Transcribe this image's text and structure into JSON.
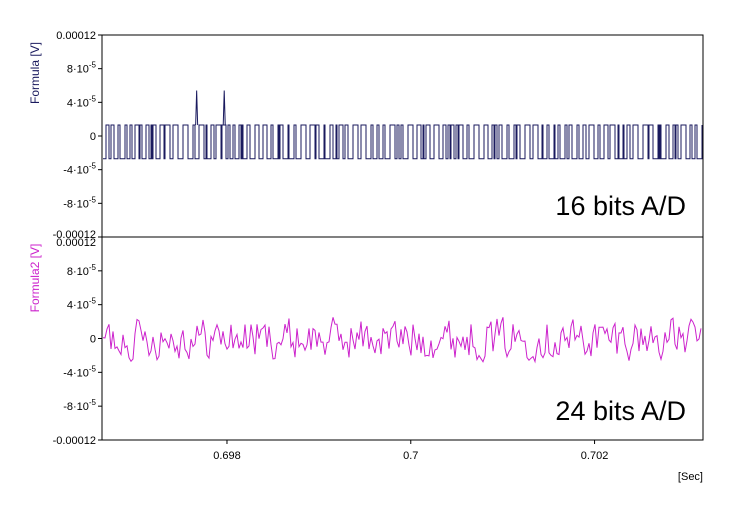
{
  "chart_data": {
    "type": "line",
    "x_unit_label": "[Sec]",
    "xlim": [
      0.69664,
      0.70318
    ],
    "x_ticks": [
      0.698,
      0.7,
      0.702
    ],
    "x_tick_labels": [
      "0.698",
      "0.7",
      "0.702"
    ],
    "panels": [
      {
        "ylabel": "Formula [V]",
        "annotation": "16 bits A/D",
        "ylim": [
          -0.00012,
          0.00012
        ],
        "y_ticks": [
          0.00012,
          8e-05,
          4e-05,
          0,
          -4e-05,
          -8e-05,
          -0.00012
        ],
        "y_tick_labels": [
          {
            "main": "0.00012",
            "sup": ""
          },
          {
            "main": "8·10",
            "sup": "-5"
          },
          {
            "main": "4·10",
            "sup": "-5"
          },
          {
            "main": "0",
            "sup": ""
          },
          {
            "main": "-4·10",
            "sup": "-5"
          },
          {
            "main": "-8·10",
            "sup": "-5"
          },
          {
            "main": "-0.00012",
            "sup": ""
          }
        ],
        "series": [
          {
            "color": "#1a1a5e",
            "style": "quantized",
            "levels": [
              1.3e-05,
              -2.7e-05
            ],
            "spikes": [
              [
                0.69767,
                5.4e-05
              ],
              [
                0.69797,
                5.4e-05
              ]
            ]
          }
        ]
      },
      {
        "ylabel": "Formula2 [V]",
        "annotation": "24 bits A/D",
        "ylim": [
          -0.00012,
          0.00012
        ],
        "y_ticks": [
          0.00012,
          8e-05,
          4e-05,
          0,
          -4e-05,
          -8e-05,
          -0.00012
        ],
        "y_tick_labels": [
          {
            "main": "0.00012",
            "sup": ""
          },
          {
            "main": "8·10",
            "sup": "-5"
          },
          {
            "main": "4·10",
            "sup": "-5"
          },
          {
            "main": "0",
            "sup": ""
          },
          {
            "main": "-4·10",
            "sup": "-5"
          },
          {
            "main": "-8·10",
            "sup": "-5"
          },
          {
            "main": "-0.00012",
            "sup": ""
          }
        ],
        "series": [
          {
            "color": "#cc22cc",
            "style": "noise",
            "amplitude": 2.5e-05
          }
        ]
      }
    ]
  },
  "colors": {
    "panel1_ylabel": "#1a1a5e",
    "panel2_ylabel": "#cc22cc",
    "axis": "#000000",
    "background": "#ffffff"
  }
}
